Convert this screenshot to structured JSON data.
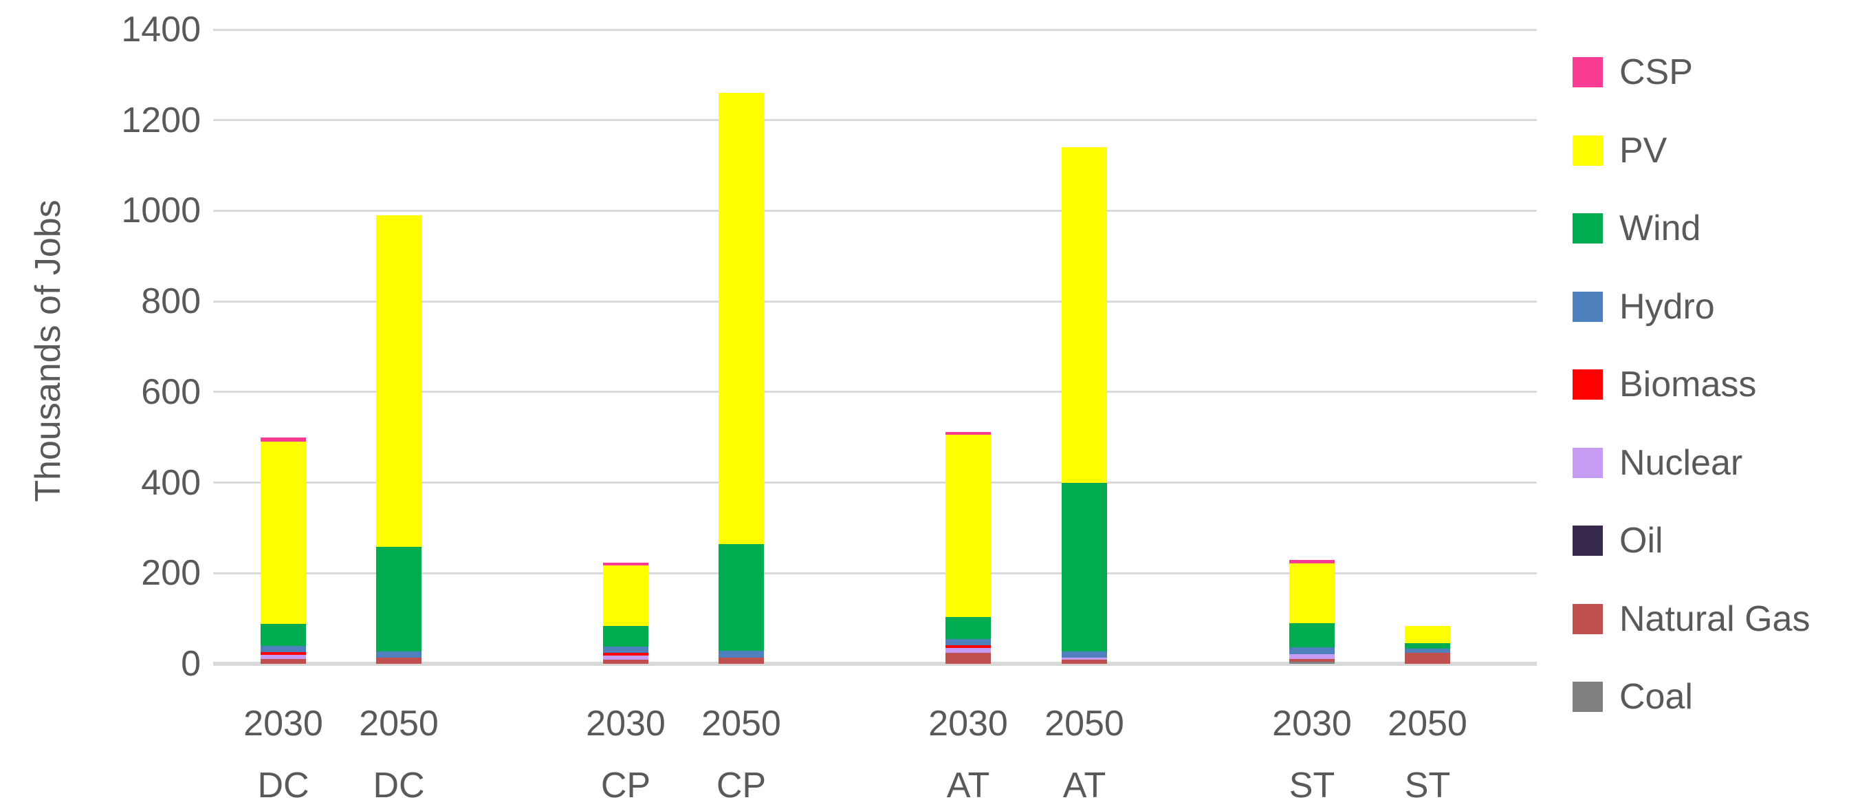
{
  "chart_data": {
    "type": "bar",
    "stacked": true,
    "title": "",
    "xlabel": "",
    "ylabel": "Thousands of Jobs",
    "ylim": [
      0,
      1400
    ],
    "yticks": [
      0,
      200,
      400,
      600,
      800,
      1000,
      1200,
      1400
    ],
    "grid": true,
    "categories": [
      {
        "year": "2030",
        "scenario": "DC"
      },
      {
        "year": "2050",
        "scenario": "DC"
      },
      {
        "year": "2030",
        "scenario": "CP"
      },
      {
        "year": "2050",
        "scenario": "CP"
      },
      {
        "year": "2030",
        "scenario": "AT"
      },
      {
        "year": "2050",
        "scenario": "AT"
      },
      {
        "year": "2030",
        "scenario": "ST"
      },
      {
        "year": "2050",
        "scenario": "ST"
      }
    ],
    "series_bottom_to_top": [
      {
        "name": "Coal",
        "color": "#808080",
        "values": [
          0,
          0,
          0,
          0,
          0,
          0,
          5,
          0
        ]
      },
      {
        "name": "Natural Gas",
        "color": "#C0504D",
        "values": [
          10,
          13,
          9,
          14,
          25,
          9,
          5,
          24
        ]
      },
      {
        "name": "Oil",
        "color": "#382A4E",
        "values": [
          0,
          0,
          0,
          0,
          0,
          0,
          0,
          0
        ]
      },
      {
        "name": "Nuclear",
        "color": "#C69CF4",
        "values": [
          10,
          0,
          9,
          0,
          10,
          5,
          11,
          0
        ]
      },
      {
        "name": "Biomass",
        "color": "#FF0000",
        "values": [
          6,
          0,
          6,
          0,
          6,
          0,
          0,
          0
        ]
      },
      {
        "name": "Hydro",
        "color": "#4E80BD",
        "values": [
          14,
          15,
          14,
          15,
          14,
          14,
          16,
          9
        ]
      },
      {
        "name": "Wind",
        "color": "#00AC50",
        "values": [
          48,
          230,
          46,
          235,
          49,
          371,
          53,
          13
        ]
      },
      {
        "name": "PV",
        "color": "#FFFF00",
        "values": [
          403,
          732,
          133,
          996,
          401,
          741,
          132,
          37
        ]
      },
      {
        "name": "CSP",
        "color": "#F83C94",
        "values": [
          8,
          0,
          7,
          0,
          7,
          0,
          8,
          0
        ]
      }
    ],
    "totals": [
      499,
      990,
      224,
      1260,
      512,
      1140,
      230,
      83
    ],
    "legend": {
      "position": "right",
      "items_top_to_bottom": [
        "CSP",
        "PV",
        "Wind",
        "Hydro",
        "Biomass",
        "Nuclear",
        "Oil",
        "Natural Gas",
        "Coal"
      ]
    },
    "style": {
      "grid_color": "#D9D9D9",
      "axis_line_color": "#D9D9D9",
      "text_color": "#595959",
      "background": "#FFFFFF"
    }
  }
}
